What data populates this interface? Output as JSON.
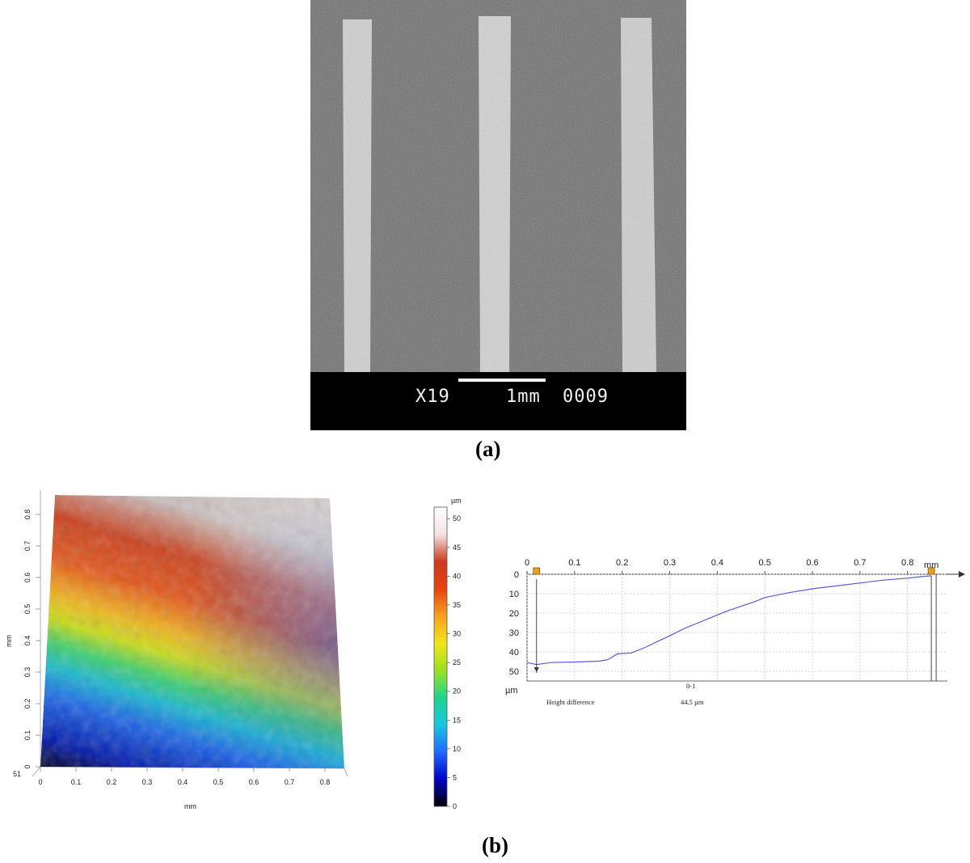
{
  "panel_a": {
    "label": "(a)",
    "magnification": "X19",
    "scale_label": "1mm",
    "frame_number": "0009",
    "stripe_count": 3
  },
  "panel_b": {
    "label": "(b)",
    "height_map": {
      "x_axis_label": "mm",
      "y_axis_label": "mm",
      "x_ticks": [
        "0",
        "0.1",
        "0.2",
        "0.3",
        "0.4",
        "0.5",
        "0.6",
        "0.7",
        "0.8"
      ],
      "y_ticks": [
        "0",
        "0.1",
        "0.2",
        "0.3",
        "0.4",
        "0.5",
        "0.6",
        "0.7",
        "0.8"
      ],
      "z_corner_label": "51"
    },
    "color_scale": {
      "unit": "µm",
      "ticks": [
        "0",
        "5",
        "10",
        "15",
        "20",
        "25",
        "30",
        "35",
        "40",
        "45",
        "50"
      ],
      "colors": [
        "#000000",
        "#0000c8",
        "#1f6bff",
        "#16c7e0",
        "#1fd48a",
        "#9be21e",
        "#f2e51a",
        "#f7a11a",
        "#e8420e",
        "#cc3a1f",
        "#f4e2e4",
        "#ffffff"
      ]
    },
    "profile": {
      "x_unit": "mm",
      "y_unit": "µm",
      "x_ticks": [
        "0",
        "0.1",
        "0.2",
        "0.3",
        "0.4",
        "0.5",
        "0.6",
        "0.7",
        "0.8"
      ],
      "y_ticks": [
        "0",
        "10",
        "20",
        "30",
        "40",
        "50"
      ],
      "measurement_name": "Height difference",
      "measurement_id": "0-1",
      "measurement_value": "44.5 µm",
      "line_color": "#5a5ae6",
      "marker_color": "#e8a020"
    }
  },
  "chart_data": [
    {
      "type": "line",
      "title": "",
      "xlabel": "mm",
      "ylabel": "µm",
      "xlim": [
        0,
        0.86
      ],
      "ylim": [
        0,
        50
      ],
      "y_axis_inverted": true,
      "series": [
        {
          "name": "",
          "x": [
            0,
            0.02,
            0.05,
            0.1,
            0.15,
            0.17,
            0.19,
            0.22,
            0.25,
            0.28,
            0.31,
            0.33,
            0.36,
            0.39,
            0.42,
            0.45,
            0.48,
            0.5,
            0.55,
            0.6,
            0.65,
            0.7,
            0.75,
            0.8,
            0.83,
            0.85
          ],
          "y": [
            45.5,
            46.5,
            45.5,
            45.2,
            44.8,
            44,
            41,
            40.5,
            37.5,
            34,
            30.5,
            28,
            25,
            22,
            19,
            16.5,
            14,
            12,
            9.5,
            7.5,
            6,
            4.5,
            3,
            2,
            1.2,
            0.8
          ]
        }
      ]
    }
  ]
}
